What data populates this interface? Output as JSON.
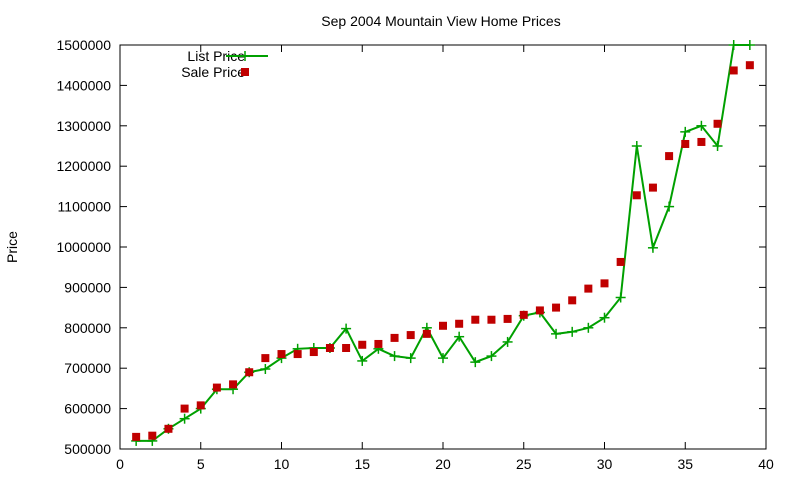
{
  "chart_data": {
    "type": "line",
    "title": "Sep 2004 Mountain View Home Prices",
    "xlabel": "",
    "ylabel": "Price",
    "xlim": [
      0,
      40
    ],
    "ylim": [
      500000,
      1500000
    ],
    "x_ticks": [
      "0",
      "5",
      "10",
      "15",
      "20",
      "25",
      "30",
      "35",
      "40"
    ],
    "y_ticks": [
      "500000",
      "600000",
      "700000",
      "800000",
      "900000",
      "1000000",
      "1100000",
      "1200000",
      "1300000",
      "1400000",
      "1500000"
    ],
    "grid": false,
    "legend_position": "top-left",
    "x": [
      1,
      2,
      3,
      4,
      5,
      6,
      7,
      8,
      9,
      10,
      11,
      12,
      13,
      14,
      15,
      16,
      17,
      18,
      19,
      20,
      21,
      22,
      23,
      24,
      25,
      26,
      27,
      28,
      29,
      30,
      31,
      32,
      33,
      34,
      35,
      36,
      37,
      38,
      39
    ],
    "series": [
      {
        "name": "List Price",
        "style": "line-points",
        "color": "#00a000",
        "marker": "plus",
        "values": [
          520000,
          520000,
          550000,
          575000,
          600000,
          648000,
          648000,
          690000,
          698000,
          725000,
          748000,
          750000,
          750000,
          798000,
          718000,
          748000,
          730000,
          725000,
          800000,
          725000,
          778000,
          715000,
          730000,
          765000,
          830000,
          838000,
          785000,
          790000,
          800000,
          825000,
          875000,
          1250000,
          998000,
          1100000,
          1285000,
          1300000,
          1250000,
          1500000,
          1500000
        ]
      },
      {
        "name": "Sale Price",
        "style": "points",
        "color": "#c00000",
        "marker": "square",
        "values": [
          530000,
          533000,
          550000,
          600000,
          608000,
          652000,
          660000,
          690000,
          725000,
          735000,
          735000,
          740000,
          750000,
          750000,
          758000,
          760000,
          775000,
          782000,
          785000,
          805000,
          810000,
          820000,
          820000,
          822000,
          832000,
          843000,
          850000,
          868000,
          897000,
          910000,
          963000,
          1128000,
          1147000,
          1225000,
          1255000,
          1260000,
          1305000,
          1437000,
          1450000
        ]
      }
    ]
  }
}
